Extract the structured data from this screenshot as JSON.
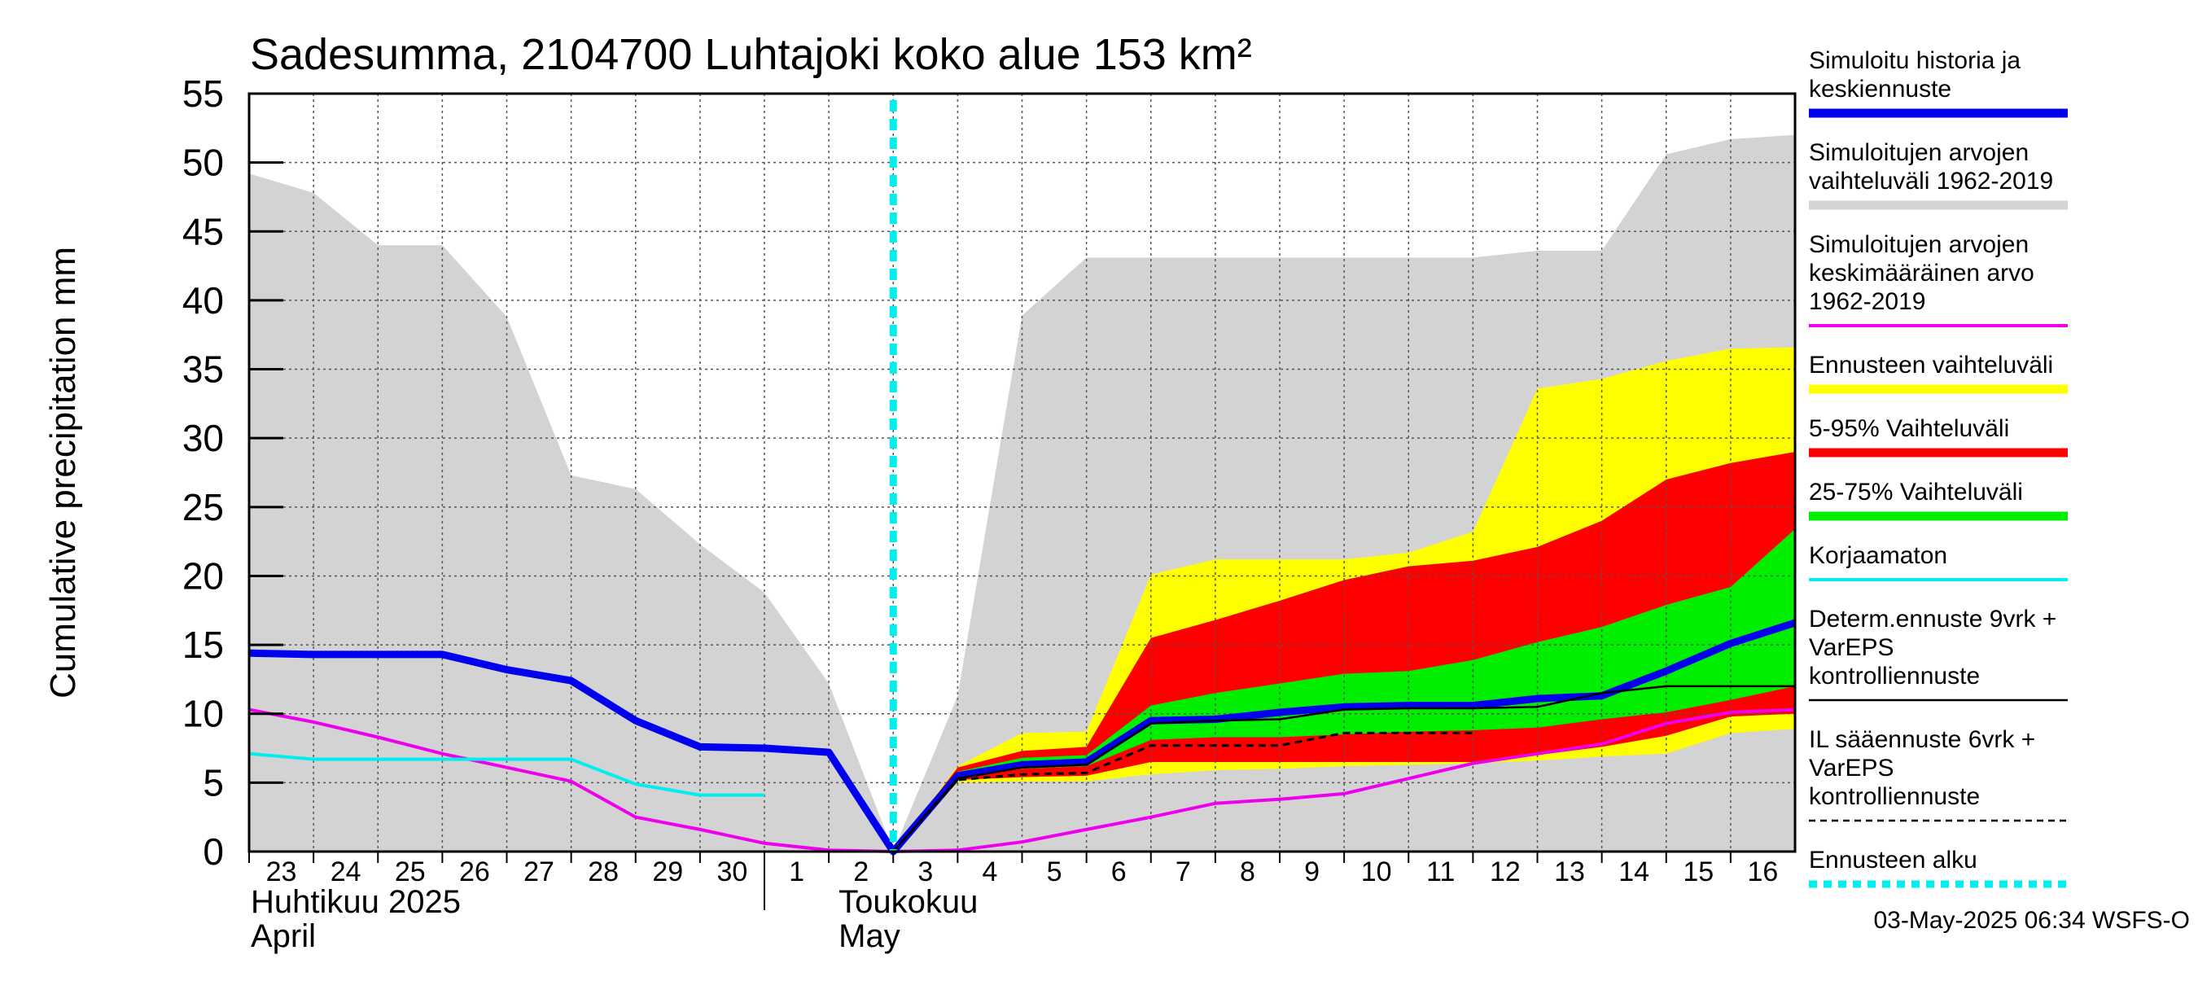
{
  "chart_data": {
    "type": "area",
    "title": "Sadesumma, 2104700 Luhtajoki koko alue 153 km²",
    "ylabel": "Cumulative precipitation   mm",
    "ylim": [
      0,
      55
    ],
    "yticks": [
      0,
      5,
      10,
      15,
      20,
      25,
      30,
      35,
      40,
      45,
      50,
      55
    ],
    "x_start": "2025-04-23",
    "x_end": "2025-05-17",
    "x_tick_labels": [
      "23",
      "24",
      "25",
      "26",
      "27",
      "28",
      "29",
      "30",
      "1",
      "2",
      "3",
      "4",
      "5",
      "6",
      "7",
      "8",
      "9",
      "10",
      "11",
      "12",
      "13",
      "14",
      "15",
      "16"
    ],
    "month_labels": [
      {
        "line1": "Huhtikuu  2025",
        "line2": "April"
      },
      {
        "line1": "Toukokuu",
        "line2": "May"
      }
    ],
    "grid": true,
    "legend_position": "right",
    "forecast_start": "2025-05-03",
    "footer": "03-May-2025 06:34 WSFS-O",
    "legend": [
      {
        "label": "Simuloitu historia ja keskiennuste",
        "color": "#0000ee",
        "style": "line-thick"
      },
      {
        "label": "Simuloitujen arvojen vaihteluväli 1962-2019",
        "color": "#d3d3d3",
        "style": "line-thick"
      },
      {
        "label": "Simuloitujen arvojen keskimääräinen arvo   1962-2019",
        "color": "#ee00ee",
        "style": "line"
      },
      {
        "label": "Ennusteen vaihteluväli",
        "color": "#ffff00",
        "style": "line-thick"
      },
      {
        "label": "5-95% Vaihteluväli",
        "color": "#ff0000",
        "style": "line-thick"
      },
      {
        "label": "25-75% Vaihteluväli",
        "color": "#00ee00",
        "style": "line-thick"
      },
      {
        "label": "Korjaamaton",
        "color": "#00eeee",
        "style": "line"
      },
      {
        "label": "Determ.ennuste 9vrk + VarEPS kontrolliennuste",
        "color": "#000000",
        "style": "line-thin"
      },
      {
        "label": "IL sääennuste 6vrk  +  VarEPS kontrolliennuste",
        "color": "#000000",
        "style": "dashed"
      },
      {
        "label": "Ennusteen alku",
        "color": "#00eeee",
        "style": "dotted"
      }
    ],
    "series": [
      {
        "name": "Simuloitujen arvojen vaihteluväli 1962-2019",
        "kind": "band",
        "color": "#d3d3d3",
        "x": [
          "2025-04-23",
          "2025-04-24",
          "2025-04-25",
          "2025-04-26",
          "2025-04-27",
          "2025-04-28",
          "2025-04-29",
          "2025-04-30",
          "2025-05-01",
          "2025-05-02",
          "2025-05-03",
          "2025-05-04",
          "2025-05-05",
          "2025-05-06",
          "2025-05-07",
          "2025-05-08",
          "2025-05-09",
          "2025-05-10",
          "2025-05-11",
          "2025-05-12",
          "2025-05-13",
          "2025-05-14",
          "2025-05-15",
          "2025-05-16",
          "2025-05-17"
        ],
        "lower": [
          0,
          0,
          0,
          0,
          0,
          0,
          0,
          0,
          0,
          0,
          0,
          0,
          0,
          0,
          0,
          0,
          0,
          0,
          0,
          0,
          0,
          0,
          0,
          0,
          0
        ],
        "upper": [
          49.2,
          47.8,
          44.0,
          44.0,
          38.8,
          27.3,
          26.3,
          22.3,
          18.8,
          12.2,
          0.0,
          11.3,
          38.9,
          43.1,
          43.1,
          43.1,
          43.1,
          43.1,
          43.1,
          43.1,
          43.6,
          43.6,
          50.6,
          51.7,
          52.0
        ]
      },
      {
        "name": "Ennusteen vaihteluväli",
        "kind": "band",
        "color": "#ffff00",
        "x": [
          "2025-05-03",
          "2025-05-04",
          "2025-05-05",
          "2025-05-06",
          "2025-05-07",
          "2025-05-08",
          "2025-05-09",
          "2025-05-10",
          "2025-05-11",
          "2025-05-12",
          "2025-05-13",
          "2025-05-14",
          "2025-05-15",
          "2025-05-16",
          "2025-05-17"
        ],
        "lower": [
          0.0,
          5.0,
          5.1,
          5.1,
          5.6,
          5.9,
          6.0,
          6.2,
          6.3,
          6.4,
          6.6,
          6.9,
          7.1,
          8.6,
          8.9
        ],
        "upper": [
          0.0,
          6.2,
          8.6,
          8.7,
          20.1,
          21.2,
          21.2,
          21.2,
          21.7,
          23.2,
          33.6,
          34.3,
          35.6,
          36.5,
          36.6
        ]
      },
      {
        "name": "5-95% Vaihteluväli",
        "kind": "band",
        "color": "#ff0000",
        "x": [
          "2025-05-03",
          "2025-05-04",
          "2025-05-05",
          "2025-05-06",
          "2025-05-07",
          "2025-05-08",
          "2025-05-09",
          "2025-05-10",
          "2025-05-11",
          "2025-05-12",
          "2025-05-13",
          "2025-05-14",
          "2025-05-15",
          "2025-05-16",
          "2025-05-17"
        ],
        "lower": [
          0.0,
          5.2,
          5.4,
          5.5,
          6.5,
          6.5,
          6.5,
          6.5,
          6.5,
          6.5,
          7.0,
          7.6,
          8.4,
          9.8,
          10.0
        ],
        "upper": [
          0.0,
          6.1,
          7.3,
          7.6,
          15.5,
          16.8,
          18.2,
          19.7,
          20.7,
          21.1,
          22.1,
          24.0,
          27.0,
          28.2,
          29.0
        ]
      },
      {
        "name": "25-75% Vaihteluväli",
        "kind": "band",
        "color": "#00ee00",
        "x": [
          "2025-05-03",
          "2025-05-04",
          "2025-05-05",
          "2025-05-06",
          "2025-05-07",
          "2025-05-08",
          "2025-05-09",
          "2025-05-10",
          "2025-05-11",
          "2025-05-12",
          "2025-05-13",
          "2025-05-14",
          "2025-05-15",
          "2025-05-16",
          "2025-05-17"
        ],
        "lower": [
          0.0,
          5.5,
          6.0,
          6.2,
          8.1,
          8.3,
          8.3,
          8.5,
          8.7,
          8.8,
          9.0,
          9.6,
          10.1,
          11.0,
          12.0
        ],
        "upper": [
          0.0,
          5.8,
          6.8,
          7.0,
          10.6,
          11.5,
          12.2,
          12.9,
          13.1,
          13.9,
          15.2,
          16.3,
          17.9,
          19.2,
          23.4
        ]
      },
      {
        "name": "Simuloitujen arvojen keskimääräinen arvo   1962-2019",
        "kind": "line",
        "color": "#ee00ee",
        "x": [
          "2025-04-23",
          "2025-04-24",
          "2025-04-25",
          "2025-04-26",
          "2025-04-27",
          "2025-04-28",
          "2025-04-29",
          "2025-04-30",
          "2025-05-01",
          "2025-05-02",
          "2025-05-03",
          "2025-05-04",
          "2025-05-05",
          "2025-05-06",
          "2025-05-07",
          "2025-05-08",
          "2025-05-09",
          "2025-05-10",
          "2025-05-11",
          "2025-05-12",
          "2025-05-13",
          "2025-05-14",
          "2025-05-15",
          "2025-05-16",
          "2025-05-17"
        ],
        "y": [
          10.3,
          9.4,
          8.3,
          7.1,
          6.1,
          5.1,
          2.5,
          1.6,
          0.6,
          0.1,
          0.0,
          0.1,
          0.7,
          1.6,
          2.5,
          3.5,
          3.8,
          4.2,
          5.3,
          6.4,
          7.1,
          7.8,
          9.3,
          10.1,
          10.3
        ]
      },
      {
        "name": "Korjaamaton",
        "kind": "line",
        "color": "#00eeee",
        "x": [
          "2025-04-23",
          "2025-04-24",
          "2025-04-25",
          "2025-04-26",
          "2025-04-27",
          "2025-04-28",
          "2025-04-29",
          "2025-04-30",
          "2025-05-01"
        ],
        "y": [
          7.1,
          6.7,
          6.7,
          6.7,
          6.7,
          6.7,
          4.9,
          4.1,
          4.1
        ]
      },
      {
        "name": "Simuloitu historia ja keskiennuste",
        "kind": "line-thick",
        "color": "#0000ee",
        "x": [
          "2025-04-23",
          "2025-04-24",
          "2025-04-25",
          "2025-04-26",
          "2025-04-27",
          "2025-04-28",
          "2025-04-29",
          "2025-04-30",
          "2025-05-01",
          "2025-05-02",
          "2025-05-03",
          "2025-05-04",
          "2025-05-05",
          "2025-05-06",
          "2025-05-07",
          "2025-05-08",
          "2025-05-09",
          "2025-05-10",
          "2025-05-11",
          "2025-05-12",
          "2025-05-13",
          "2025-05-14",
          "2025-05-15",
          "2025-05-16",
          "2025-05-17"
        ],
        "y": [
          14.4,
          14.3,
          14.3,
          14.3,
          13.2,
          12.4,
          9.5,
          7.6,
          7.5,
          7.2,
          0.0,
          5.5,
          6.3,
          6.5,
          9.5,
          9.6,
          10.1,
          10.5,
          10.6,
          10.6,
          11.1,
          11.3,
          13.1,
          15.1,
          16.6
        ]
      },
      {
        "name": "Determ.ennuste 9vrk + VarEPS kontrolliennuste",
        "kind": "line-thin",
        "color": "#000000",
        "x": [
          "2025-05-03",
          "2025-05-04",
          "2025-05-05",
          "2025-05-06",
          "2025-05-07",
          "2025-05-08",
          "2025-05-09",
          "2025-05-10",
          "2025-05-11",
          "2025-05-12",
          "2025-05-13",
          "2025-05-14",
          "2025-05-15",
          "2025-05-16",
          "2025-05-17"
        ],
        "y": [
          0.0,
          5.3,
          6.1,
          6.3,
          9.3,
          9.5,
          9.6,
          10.3,
          10.4,
          10.4,
          10.5,
          11.5,
          12.0,
          12.0,
          12.0
        ]
      },
      {
        "name": "IL sääennuste 6vrk  +  VarEPS kontrolliennuste",
        "kind": "dashed",
        "color": "#000000",
        "x": [
          "2025-05-03",
          "2025-05-04",
          "2025-05-05",
          "2025-05-06",
          "2025-05-07",
          "2025-05-08",
          "2025-05-09",
          "2025-05-10",
          "2025-05-11",
          "2025-05-12"
        ],
        "y": [
          0.0,
          5.2,
          5.6,
          5.7,
          7.7,
          7.7,
          7.7,
          8.6,
          8.6,
          8.6
        ]
      }
    ]
  }
}
